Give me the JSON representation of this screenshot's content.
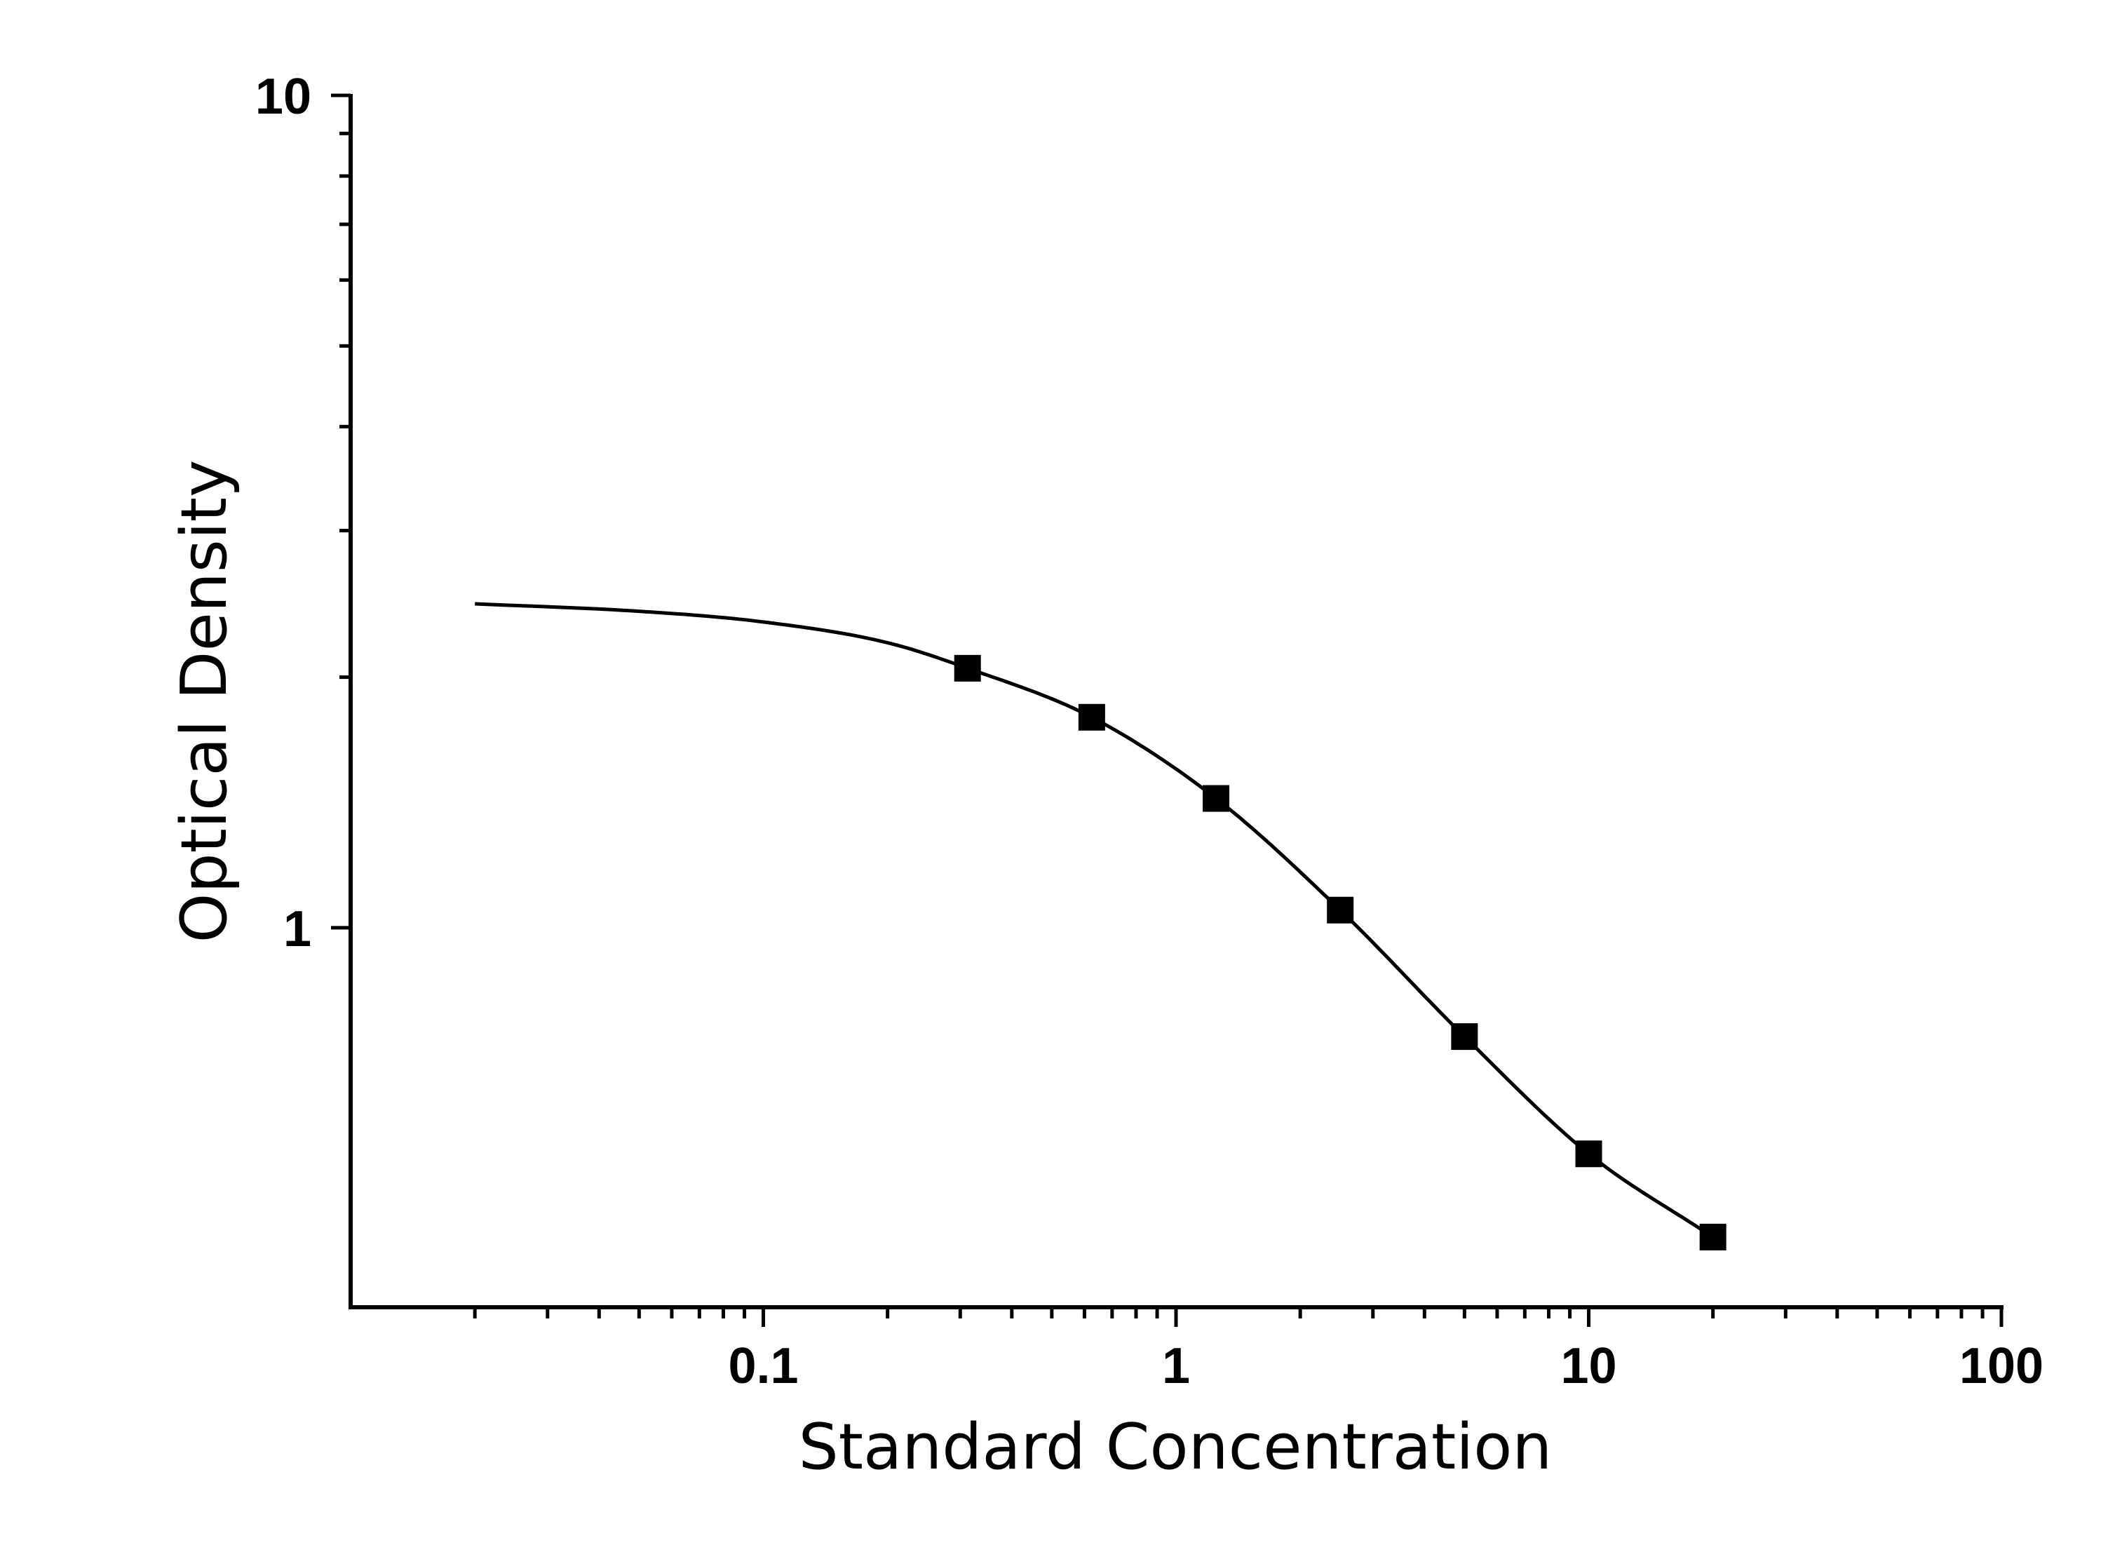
{
  "chart_data": {
    "type": "scatter",
    "title": "",
    "xlabel": "Standard Concentration",
    "ylabel": "Optical Density",
    "x_scale": "log",
    "y_scale": "log",
    "xlim": [
      0.01,
      100
    ],
    "ylim": [
      0.35,
      10
    ],
    "x_ticks": [
      "0.1",
      "1",
      "10",
      "100"
    ],
    "y_ticks": [
      "1",
      "10"
    ],
    "grid": false,
    "legend": "none",
    "series": [
      {
        "marker": "square",
        "color": "#000000",
        "points": [
          {
            "x": 0.3125,
            "y": 2.05
          },
          {
            "x": 0.625,
            "y": 1.79
          },
          {
            "x": 1.25,
            "y": 1.43
          },
          {
            "x": 2.5,
            "y": 1.05
          },
          {
            "x": 5,
            "y": 0.74
          },
          {
            "x": 10,
            "y": 0.535
          },
          {
            "x": 20,
            "y": 0.425
          }
        ]
      }
    ],
    "fit_curve": {
      "type": "4PL",
      "color": "#000000",
      "x_range": [
        0.02,
        20
      ],
      "points": [
        {
          "x": 0.02,
          "y": 2.45
        },
        {
          "x": 0.05,
          "y": 2.4
        },
        {
          "x": 0.1,
          "y": 2.33
        },
        {
          "x": 0.2,
          "y": 2.2
        },
        {
          "x": 0.3125,
          "y": 2.05
        },
        {
          "x": 0.625,
          "y": 1.79
        },
        {
          "x": 1.25,
          "y": 1.43
        },
        {
          "x": 2.5,
          "y": 1.05
        },
        {
          "x": 5,
          "y": 0.74
        },
        {
          "x": 10,
          "y": 0.535
        },
        {
          "x": 20,
          "y": 0.425
        }
      ]
    }
  }
}
